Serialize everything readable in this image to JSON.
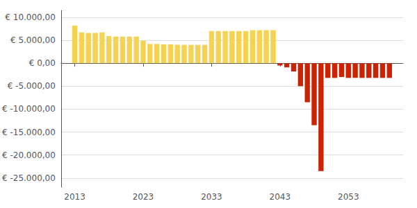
{
  "chart_data": {
    "type": "bar",
    "x": [
      2013,
      2014,
      2015,
      2016,
      2017,
      2018,
      2019,
      2020,
      2021,
      2022,
      2023,
      2024,
      2025,
      2026,
      2027,
      2028,
      2029,
      2030,
      2031,
      2032,
      2033,
      2034,
      2035,
      2036,
      2037,
      2038,
      2039,
      2040,
      2041,
      2042,
      2043,
      2044,
      2045,
      2046,
      2047,
      2048,
      2049,
      2050,
      2051,
      2052,
      2053,
      2054,
      2055,
      2056,
      2057,
      2058,
      2059
    ],
    "values": [
      8200,
      6700,
      6600,
      6600,
      6700,
      5900,
      5800,
      5800,
      5800,
      5800,
      4900,
      4200,
      4200,
      4100,
      4100,
      4000,
      4000,
      4000,
      4000,
      4000,
      7000,
      7000,
      7000,
      7000,
      7000,
      7000,
      7200,
      7200,
      7200,
      7200,
      -500,
      -900,
      -1800,
      -5000,
      -8500,
      -13500,
      -23500,
      -3200,
      -3200,
      -3000,
      -3200,
      -3200,
      -3200,
      -3200,
      -3200,
      -3200,
      -3200
    ],
    "colors": [
      "#F5D252",
      "#F5D252",
      "#F5D252",
      "#F5D252",
      "#F5D252",
      "#F5D252",
      "#F5D252",
      "#F5D252",
      "#F5D252",
      "#F5D252",
      "#F5D252",
      "#F5D252",
      "#F5D252",
      "#F5D252",
      "#F5D252",
      "#F5D252",
      "#F5D252",
      "#F5D252",
      "#F5D252",
      "#F5D252",
      "#F5D252",
      "#F5D252",
      "#F5D252",
      "#F5D252",
      "#F5D252",
      "#F5D252",
      "#F5D252",
      "#F5D252",
      "#F5D252",
      "#F5D252",
      "#CC2200",
      "#CC2200",
      "#CC2200",
      "#CC2200",
      "#CC2200",
      "#CC2200",
      "#CC2200",
      "#CC2200",
      "#CC2200",
      "#CC2200",
      "#CC2200",
      "#CC2200",
      "#CC2200",
      "#CC2200",
      "#CC2200",
      "#CC2200",
      "#CC2200"
    ],
    "xlim": [
      2011.0,
      2061.0
    ],
    "xticks": [
      2013,
      2023,
      2033,
      2043,
      2053
    ],
    "ylim": [
      -27000,
      11500
    ],
    "yticks": [
      {
        "value": 10000,
        "label": "€ 10.000,00"
      },
      {
        "value": 5000,
        "label": "€ 5.000,00"
      },
      {
        "value": 0,
        "label": "€ 0,00"
      },
      {
        "value": -5000,
        "label": "€ -5.000,00"
      },
      {
        "value": -10000,
        "label": "€ -10.000,00"
      },
      {
        "value": -15000,
        "label": "€ -15.000,00"
      },
      {
        "value": -20000,
        "label": "€ -20.000,00"
      },
      {
        "value": -25000,
        "label": "€ -25.000,00"
      }
    ],
    "grid": true
  }
}
